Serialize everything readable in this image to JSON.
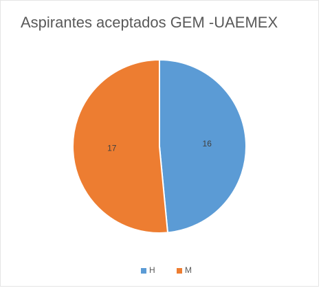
{
  "chart_data": {
    "type": "pie",
    "title": "Aspirantes aceptados GEM -UAEMEX",
    "categories": [
      "H",
      "M"
    ],
    "values": [
      16,
      17
    ],
    "colors": [
      "#5b9bd5",
      "#ed7d31"
    ],
    "legend": "bottom"
  }
}
